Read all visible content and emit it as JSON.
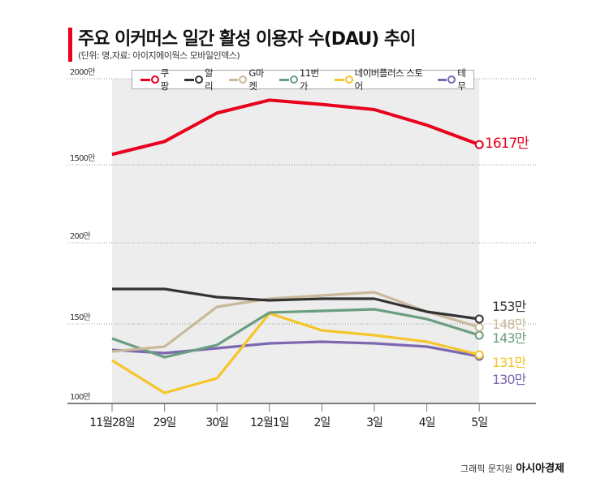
{
  "header": {
    "title": "주요 이커머스 일간 활성 이용자 수(DAU) 추이",
    "subtitle": "(단위: 명,자료: 아이지에이웍스 모바일인덱스)"
  },
  "credit": {
    "text": "그래픽 문지원",
    "brand": "아시아경제"
  },
  "chart_data": {
    "type": "line",
    "title": "주요 이커머스 일간 활성 이용자 수(DAU) 추이",
    "categories": [
      "11월28일",
      "29일",
      "30일",
      "12월1일",
      "2일",
      "3일",
      "4일",
      "5일"
    ],
    "y_ticks": [
      "2000만",
      "1500만",
      "200만",
      "150만",
      "100만"
    ],
    "axis_break": {
      "upper_range": [
        1500,
        2000
      ],
      "lower_range": [
        100,
        200
      ],
      "unit": "만"
    },
    "grid": true,
    "legend_position": "top",
    "series": [
      {
        "name": "쿠팡",
        "color": "#e8001c",
        "values": [
          1560,
          1635,
          1800,
          1875,
          1850,
          1820,
          1730,
          1617
        ],
        "end_label": "1617만",
        "panel": "upper"
      },
      {
        "name": "알리",
        "color": "#333333",
        "values": [
          171.5,
          171.5,
          166.5,
          164.5,
          165.5,
          165.5,
          157.5,
          153
        ],
        "end_label": "153만",
        "panel": "lower"
      },
      {
        "name": "G마켓",
        "color": "#c9b99a",
        "values": [
          133,
          136,
          160.5,
          165.5,
          167.5,
          169.5,
          157.5,
          148
        ],
        "end_label": "148만",
        "panel": "lower"
      },
      {
        "name": "11번가",
        "color": "#6a9e80",
        "values": [
          141,
          129.5,
          137,
          157,
          158,
          159,
          153,
          143
        ],
        "end_label": "143만",
        "panel": "lower"
      },
      {
        "name": "네이버플러스 스토어",
        "color": "#f5c52a",
        "values": [
          127.5,
          107.5,
          116.5,
          156.5,
          146,
          143,
          139,
          131
        ],
        "end_label": "131만",
        "panel": "lower"
      },
      {
        "name": "테무",
        "color": "#7b68b0",
        "values": [
          134,
          132,
          135,
          138,
          139,
          138,
          136,
          130
        ],
        "end_label": "130만",
        "panel": "lower"
      }
    ]
  }
}
